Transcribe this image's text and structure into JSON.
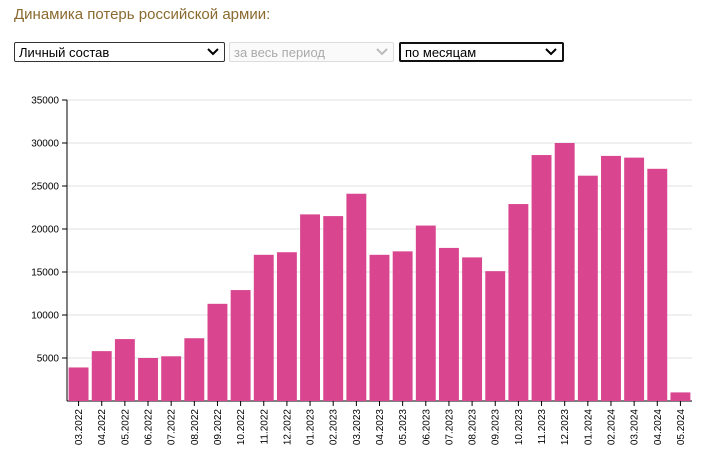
{
  "header": {
    "title": "Динамика потерь российской армии:"
  },
  "controls": {
    "metric": {
      "value": "Личный состав",
      "icon": "chevron-down-icon"
    },
    "period": {
      "value": "за весь период",
      "icon": "chevron-down-icon"
    },
    "grouping": {
      "value": "по месяцам",
      "icon": "chevron-down-icon"
    }
  },
  "chart_data": {
    "type": "bar",
    "title": "",
    "xlabel": "",
    "ylabel": "",
    "ylim": [
      0,
      35000
    ],
    "yticks": [
      5000,
      10000,
      15000,
      20000,
      25000,
      30000,
      35000
    ],
    "grid": true,
    "bar_color": "#d9468f",
    "categories": [
      "03.2022",
      "04.2022",
      "05.2022",
      "06.2022",
      "07.2022",
      "08.2022",
      "09.2022",
      "10.2022",
      "11.2022",
      "12.2022",
      "01.2023",
      "02.2023",
      "03.2023",
      "04.2023",
      "05.2023",
      "06.2023",
      "07.2023",
      "08.2023",
      "09.2023",
      "10.2023",
      "11.2023",
      "12.2023",
      "01.2024",
      "02.2024",
      "03.2024",
      "04.2024",
      "05.2024"
    ],
    "values": [
      3900,
      5800,
      7200,
      5000,
      5200,
      7300,
      11300,
      12900,
      17000,
      17300,
      21700,
      21500,
      24100,
      17000,
      17400,
      20400,
      17800,
      16700,
      15100,
      22900,
      28600,
      30000,
      26200,
      28500,
      28300,
      27000,
      1000
    ]
  }
}
